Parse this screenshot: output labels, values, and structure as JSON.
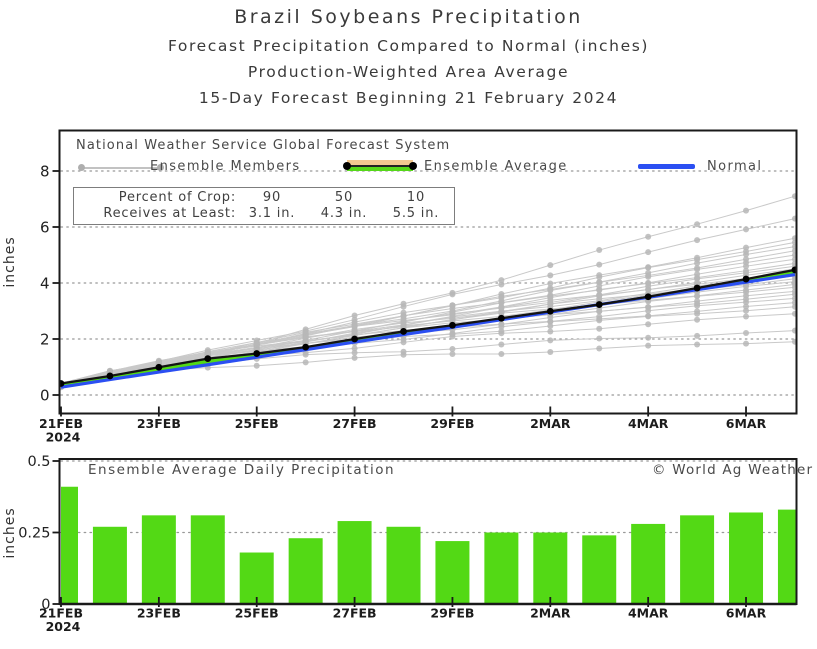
{
  "page": {
    "title": "Brazil Soybeans Precipitation",
    "subtitle1": "Forecast Precipitation Compared to Normal (inches)",
    "subtitle2": "Production-Weighted Area Average",
    "subtitle3": "15-Day Forecast Beginning 21 February 2024"
  },
  "legend": {
    "header": "National Weather Service Global Forecast System",
    "members_label": "Ensemble Members",
    "average_label": "Ensemble Average",
    "normal_label": "Normal"
  },
  "stats_box": {
    "row1_label": "Percent of Crop:",
    "row1_values": [
      "90",
      "50",
      "10"
    ],
    "row2_label": "Receives at Least:",
    "row2_values": [
      "3.1 in.",
      "4.3 in.",
      "5.5 in."
    ]
  },
  "bottom_panel": {
    "caption": "Ensemble Average Daily Precipitation",
    "credit": "© World Ag Weather"
  },
  "colors": {
    "bar_green": "#53d915",
    "band_green": "#53d915",
    "normal_blue": "#2b4ff2",
    "average_black": "#141414",
    "member_line_gray": "#c9c9c9",
    "member_dot_gray": "#b7b7b7",
    "legend_tan": "#f2c890",
    "frame": "#1a1a1a",
    "grid": "#999999",
    "tick_text": "#222222"
  },
  "chart_data": [
    {
      "type": "line",
      "panel": "top",
      "title": "Cumulative forecast precipitation vs normal",
      "ylabel": "inches",
      "ylim": [
        -0.65,
        9.45
      ],
      "y_ticks": [
        0,
        2,
        4,
        6,
        8
      ],
      "x_tick_labels": [
        "21FEB",
        "23FEB",
        "25FEB",
        "27FEB",
        "29FEB",
        "2MAR",
        "4MAR",
        "6MAR"
      ],
      "x_tick_days": [
        0,
        2,
        4,
        6,
        8,
        10,
        12,
        14
      ],
      "x_year_label": "2024",
      "days_total": 15,
      "grid": "dotted",
      "legend_position": "top-left-inside",
      "series": [
        {
          "name": "Ensemble Average",
          "color_key": "average_black",
          "values": [
            0.41,
            0.68,
            0.99,
            1.3,
            1.48,
            1.71,
            2.0,
            2.27,
            2.49,
            2.74,
            2.99,
            3.23,
            3.51,
            3.82,
            4.14,
            4.47
          ]
        },
        {
          "name": "Normal",
          "color_key": "normal_blue",
          "values": [
            0.28,
            0.55,
            0.82,
            1.08,
            1.35,
            1.62,
            1.89,
            2.16,
            2.42,
            2.69,
            2.96,
            3.23,
            3.49,
            3.76,
            4.03,
            4.3
          ]
        }
      ],
      "ensemble_members_start": 0.35,
      "ensemble_members_day15": [
        1.9,
        2.3,
        2.9,
        3.15,
        3.3,
        3.45,
        3.6,
        3.7,
        3.85,
        3.95,
        4.05,
        4.15,
        4.25,
        4.3,
        4.4,
        4.5,
        4.6,
        4.7,
        4.85,
        5.0,
        5.15,
        5.3,
        5.45,
        5.6,
        6.3,
        7.1
      ]
    },
    {
      "type": "bar",
      "panel": "bottom",
      "title": "Ensemble Average Daily Precipitation",
      "ylabel": "inches",
      "ylim": [
        0,
        0.507
      ],
      "y_ticks": [
        0,
        0.25,
        0.5
      ],
      "y_tick_labels": [
        "0",
        "0.25",
        "0.5"
      ],
      "x_tick_labels": [
        "21FEB",
        "23FEB",
        "25FEB",
        "27FEB",
        "29FEB",
        "2MAR",
        "4MAR",
        "6MAR"
      ],
      "x_tick_days": [
        0,
        2,
        4,
        6,
        8,
        10,
        12,
        14
      ],
      "x_year_label": "2024",
      "grid": "dotted",
      "values": [
        0.41,
        0.27,
        0.31,
        0.31,
        0.18,
        0.23,
        0.29,
        0.27,
        0.22,
        0.25,
        0.25,
        0.24,
        0.28,
        0.31,
        0.32,
        0.33
      ]
    }
  ]
}
